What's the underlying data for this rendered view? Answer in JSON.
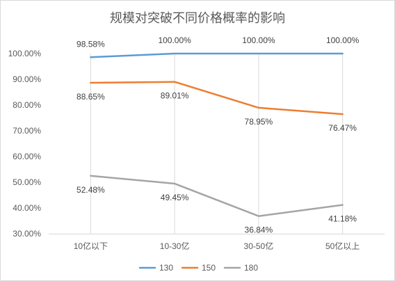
{
  "chart_data": {
    "type": "line",
    "title": "规模对突破不同价格概率的影响",
    "categories": [
      "10亿以下",
      "10-30亿",
      "30-50亿",
      "50亿以上"
    ],
    "ylim": [
      30,
      100
    ],
    "y_ticks": [
      {
        "value": 100,
        "label": "100.00%"
      },
      {
        "value": 90,
        "label": "90.00%"
      },
      {
        "value": 80,
        "label": "80.00%"
      },
      {
        "value": 70,
        "label": "70.00%"
      },
      {
        "value": 60,
        "label": "60.00%"
      },
      {
        "value": 50,
        "label": "50.00%"
      },
      {
        "value": 40,
        "label": "40.00%"
      },
      {
        "value": 30,
        "label": "30.00%"
      }
    ],
    "grid": {
      "horizontal": false,
      "vertical": true
    },
    "legend_position": "bottom",
    "series": [
      {
        "name": "130",
        "color": "#5B9BD5",
        "label_position": "above",
        "values": [
          98.58,
          100.0,
          100.0,
          100.0
        ],
        "labels": [
          "98.58%",
          "100.00%",
          "100.00%",
          "100.00%"
        ]
      },
      {
        "name": "150",
        "color": "#ED7D31",
        "label_position": "below",
        "values": [
          88.65,
          89.01,
          78.95,
          76.47
        ],
        "labels": [
          "88.65%",
          "89.01%",
          "78.95%",
          "76.47%"
        ]
      },
      {
        "name": "180",
        "color": "#A5A5A5",
        "label_position": "below",
        "values": [
          52.48,
          49.45,
          36.84,
          41.18
        ],
        "labels": [
          "52.48%",
          "49.45%",
          "36.84%",
          "41.18%"
        ]
      }
    ]
  }
}
